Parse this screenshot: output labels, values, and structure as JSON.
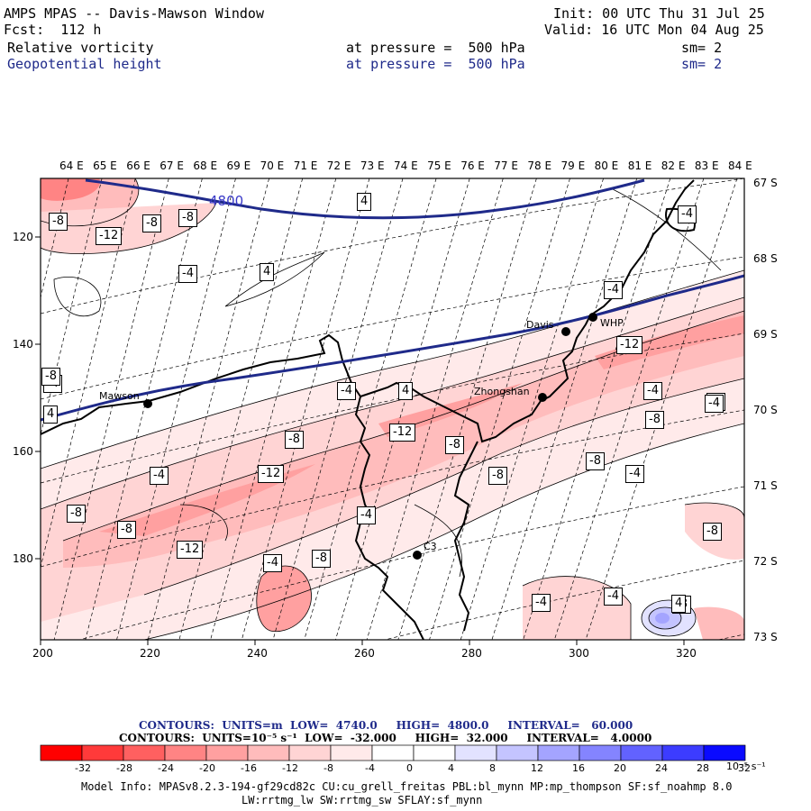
{
  "header": {
    "left_line1": "AMPS MPAS -- Davis-Mawson Window",
    "left_line2": "Fcst:  112 h",
    "init": "Init: 00 UTC Thu 31 Jul 25",
    "valid": "Valid: 16 UTC Mon 04 Aug 25",
    "field1": {
      "name": "Relative vorticity",
      "level": "at pressure =  500 hPa",
      "sm": "sm= 2"
    },
    "field2": {
      "name": "Geopotential height",
      "level": "at pressure =  500 hPa",
      "sm": "sm= 2"
    }
  },
  "axes": {
    "top_lon": [
      "64 E",
      "65 E",
      "66 E",
      "67 E",
      "68 E",
      "69 E",
      "70 E",
      "71 E",
      "72 E",
      "73 E",
      "74 E",
      "75 E",
      "76 E",
      "77 E",
      "78 E",
      "79 E",
      "80 E",
      "81 E",
      "82 E",
      "83 E",
      "84 E"
    ],
    "right_lat": [
      "67 S",
      "68 S",
      "69 S",
      "70 S",
      "71 S",
      "72 S",
      "73 S"
    ],
    "bottom_x": [
      "200",
      "220",
      "240",
      "260",
      "280",
      "300",
      "320"
    ],
    "left_y": [
      "120",
      "140",
      "160",
      "180"
    ]
  },
  "stations": [
    {
      "name": "Mawson"
    },
    {
      "name": "Davis"
    },
    {
      "name": "WHP"
    },
    {
      "name": "Zhongshan"
    },
    {
      "name": "C3"
    }
  ],
  "contour_labels": {
    "height": [
      "4800"
    ],
    "vorticity": [
      "-8",
      "-12",
      "-8",
      "-8",
      "4",
      "-4",
      "4",
      "-4",
      "-12",
      "-4",
      "-4",
      "4",
      "4",
      "-4",
      "-8",
      "-8",
      "-12",
      "-8",
      "-8",
      "-8",
      "-8",
      "-4",
      "-4",
      "-12",
      "-8",
      "-4",
      "-8",
      "-12",
      "-8",
      "-4",
      "-8",
      "-4",
      "-4",
      "-8",
      "-4",
      "-8",
      "-4",
      "4"
    ]
  },
  "contour_info": {
    "line1": "CONTOURS:  UNITS=m  LOW=  4740.0     HIGH=  4800.0     INTERVAL=   60.000",
    "line2": "CONTOURS:  UNITS=10⁻⁵ s⁻¹  LOW=  -32.000     HIGH=  32.000     INTERVAL=   4.0000"
  },
  "colorbar": {
    "ticks": [
      "-32",
      "-28",
      "-24",
      "-20",
      "-16",
      "-12",
      "-8",
      "-4",
      "0",
      "4",
      "8",
      "12",
      "16",
      "20",
      "24",
      "28",
      "32"
    ],
    "unit": "10⁻⁵ s⁻¹",
    "colors": [
      "#ff0000",
      "#ff3a3a",
      "#ff6060",
      "#ff8484",
      "#ffa0a0",
      "#ffbcbc",
      "#ffd4d4",
      "#ffeaea",
      "#ffffff",
      "#ffffff",
      "#e2e2ff",
      "#c4c4ff",
      "#a4a4ff",
      "#8484ff",
      "#6262ff",
      "#3c3cff",
      "#0a0aff"
    ]
  },
  "model_info": {
    "line1": "Model Info: MPASv8.2.3-194-gf29cd82c CU:cu_grell_freitas PBL:bl_mynn MP:mp_thompson SF:sf_noahmp 8.0",
    "line2": "LW:rrtmg_lw SW:rrtmg_sw SFLAY:sf_mynn"
  }
}
